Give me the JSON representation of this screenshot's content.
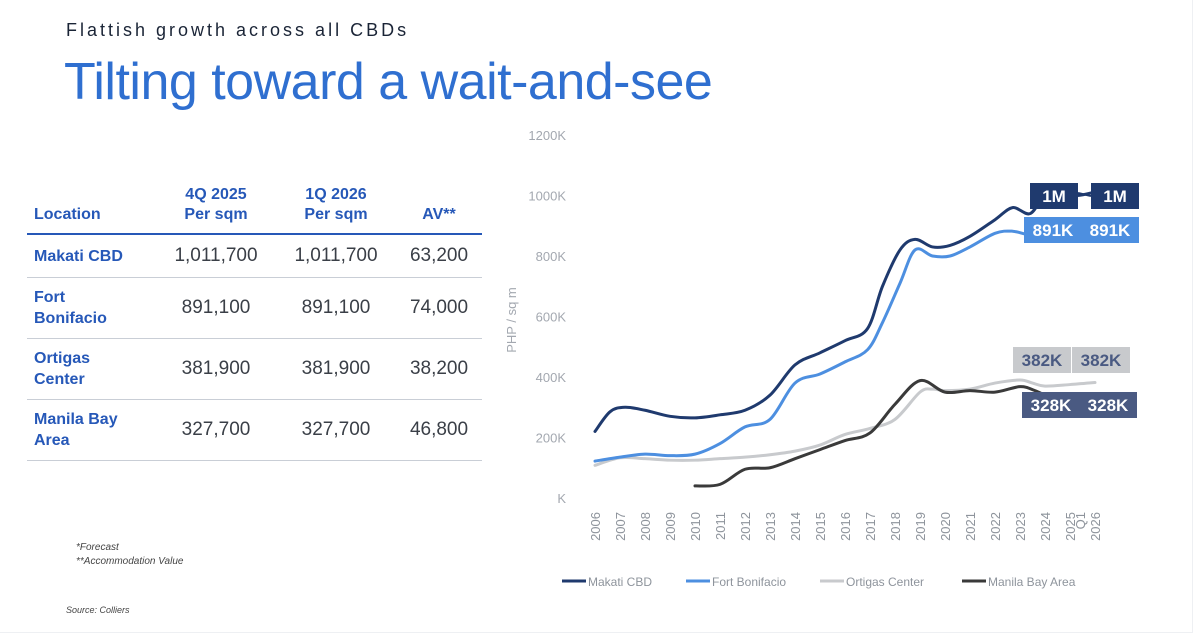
{
  "header": {
    "kicker": "Flattish growth across all CBDs",
    "title": "Tilting toward a wait-and-see"
  },
  "table": {
    "headers": [
      {
        "line1": "Location",
        "line2": ""
      },
      {
        "line1": "4Q 2025",
        "line2": "Per sqm"
      },
      {
        "line1": "1Q 2026",
        "line2": "Per sqm"
      },
      {
        "line1": "AV**",
        "line2": ""
      }
    ],
    "rows": [
      {
        "location_line1": "Makati CBD",
        "location_line2": "",
        "q4_2025": "1,011,700",
        "q1_2026": "1,011,700",
        "av": "63,200"
      },
      {
        "location_line1": "Fort",
        "location_line2": "Bonifacio",
        "q4_2025": "891,100",
        "q1_2026": "891,100",
        "av": "74,000"
      },
      {
        "location_line1": "Ortigas",
        "location_line2": "Center",
        "q4_2025": "381,900",
        "q1_2026": "381,900",
        "av": "38,200"
      },
      {
        "location_line1": "Manila Bay",
        "location_line2": "Area",
        "q4_2025": "327,700",
        "q1_2026": "327,700",
        "av": "46,800"
      }
    ]
  },
  "notes": {
    "line1": "*Forecast",
    "line2": "**Accommodation Value",
    "source": "Source: Colliers"
  },
  "chart_data": {
    "type": "line",
    "title": "",
    "xlabel": "",
    "ylabel": "PHP / sq m",
    "x": [
      "2006",
      "2007",
      "2008",
      "2009",
      "2010",
      "2011",
      "2012",
      "2013",
      "2014",
      "2015",
      "2016",
      "2017",
      "2018",
      "2019",
      "2020",
      "2021",
      "2022",
      "2023",
      "2024",
      "2025",
      "Q1 2026"
    ],
    "yticks": [
      "K",
      "200K",
      "400K",
      "600K",
      "800K",
      "1000K",
      "1200K"
    ],
    "ylim": [
      0,
      1200000
    ],
    "grid": false,
    "legend_position": "bottom",
    "series": [
      {
        "name": "Makati CBD",
        "color": "#1f3a6e",
        "points": [
          [
            0,
            220000
          ],
          [
            0.6,
            285000
          ],
          [
            1.2,
            300000
          ],
          [
            2,
            290000
          ],
          [
            3,
            270000
          ],
          [
            4,
            265000
          ],
          [
            5,
            275000
          ],
          [
            6,
            290000
          ],
          [
            7,
            340000
          ],
          [
            8,
            440000
          ],
          [
            9,
            480000
          ],
          [
            10,
            520000
          ],
          [
            10.9,
            560000
          ],
          [
            11.5,
            700000
          ],
          [
            12.2,
            820000
          ],
          [
            12.8,
            855000
          ],
          [
            13.5,
            830000
          ],
          [
            14.2,
            835000
          ],
          [
            15,
            865000
          ],
          [
            16,
            920000
          ],
          [
            16.7,
            960000
          ],
          [
            17.4,
            940000
          ],
          [
            18,
            1000000
          ],
          [
            18.7,
            1005000
          ],
          [
            19.3,
            1000000
          ],
          [
            20,
            1011700
          ]
        ],
        "end_labels": [
          "1M",
          "1M"
        ]
      },
      {
        "name": "Fort Bonifacio",
        "color": "#4d8fe0",
        "points": [
          [
            0,
            122000
          ],
          [
            1,
            135000
          ],
          [
            2,
            145000
          ],
          [
            3,
            140000
          ],
          [
            4,
            145000
          ],
          [
            5,
            180000
          ],
          [
            6,
            235000
          ],
          [
            7,
            260000
          ],
          [
            8,
            380000
          ],
          [
            9,
            410000
          ],
          [
            10,
            450000
          ],
          [
            10.9,
            490000
          ],
          [
            11.5,
            580000
          ],
          [
            12.2,
            710000
          ],
          [
            12.8,
            820000
          ],
          [
            13.5,
            800000
          ],
          [
            14.2,
            800000
          ],
          [
            15,
            830000
          ],
          [
            16,
            875000
          ],
          [
            16.7,
            882000
          ],
          [
            17.4,
            870000
          ],
          [
            18,
            880000
          ],
          [
            18.8,
            885000
          ],
          [
            20,
            891100
          ]
        ],
        "end_labels": [
          "891K",
          "891K"
        ]
      },
      {
        "name": "Ortigas Center",
        "color": "#c8cacd",
        "points": [
          [
            0,
            108000
          ],
          [
            1,
            133000
          ],
          [
            2,
            130000
          ],
          [
            3,
            125000
          ],
          [
            4,
            125000
          ],
          [
            5,
            130000
          ],
          [
            6,
            135000
          ],
          [
            7,
            143000
          ],
          [
            8,
            155000
          ],
          [
            9,
            175000
          ],
          [
            10,
            210000
          ],
          [
            11,
            230000
          ],
          [
            12,
            260000
          ],
          [
            13,
            350000
          ],
          [
            13.5,
            360000
          ],
          [
            14,
            355000
          ],
          [
            15,
            360000
          ],
          [
            16,
            380000
          ],
          [
            17,
            390000
          ],
          [
            17.5,
            380000
          ],
          [
            18,
            370000
          ],
          [
            19,
            375000
          ],
          [
            20,
            381900
          ]
        ],
        "end_labels": [
          "382K",
          "382K"
        ]
      },
      {
        "name": "Manila Bay Area",
        "color": "#3a3a3a",
        "points": [
          [
            4,
            40000
          ],
          [
            5,
            45000
          ],
          [
            6,
            95000
          ],
          [
            7,
            100000
          ],
          [
            8,
            130000
          ],
          [
            9,
            160000
          ],
          [
            10,
            190000
          ],
          [
            11,
            215000
          ],
          [
            12,
            310000
          ],
          [
            13,
            388000
          ],
          [
            14,
            350000
          ],
          [
            15,
            355000
          ],
          [
            16,
            350000
          ],
          [
            17,
            368000
          ],
          [
            17.6,
            355000
          ],
          [
            18.3,
            330000
          ],
          [
            19,
            328000
          ],
          [
            20,
            327700
          ]
        ],
        "end_labels": [
          "328K",
          "328K"
        ]
      }
    ]
  }
}
